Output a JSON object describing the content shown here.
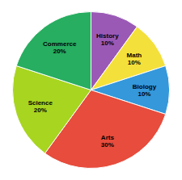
{
  "chart_data": {
    "type": "pie",
    "categories": [
      "History",
      "Math",
      "Biology",
      "Arts",
      "Science",
      "Commerce"
    ],
    "values": [
      10,
      10,
      10,
      30,
      20,
      20
    ],
    "value_labels": [
      "10%",
      "10%",
      "10%",
      "30%",
      "20%",
      "20%"
    ],
    "colors": [
      "#9B59B6",
      "#F4E03A",
      "#3498DB",
      "#E74C3C",
      "#A8D520",
      "#27AE60"
    ],
    "data_labels": true
  }
}
